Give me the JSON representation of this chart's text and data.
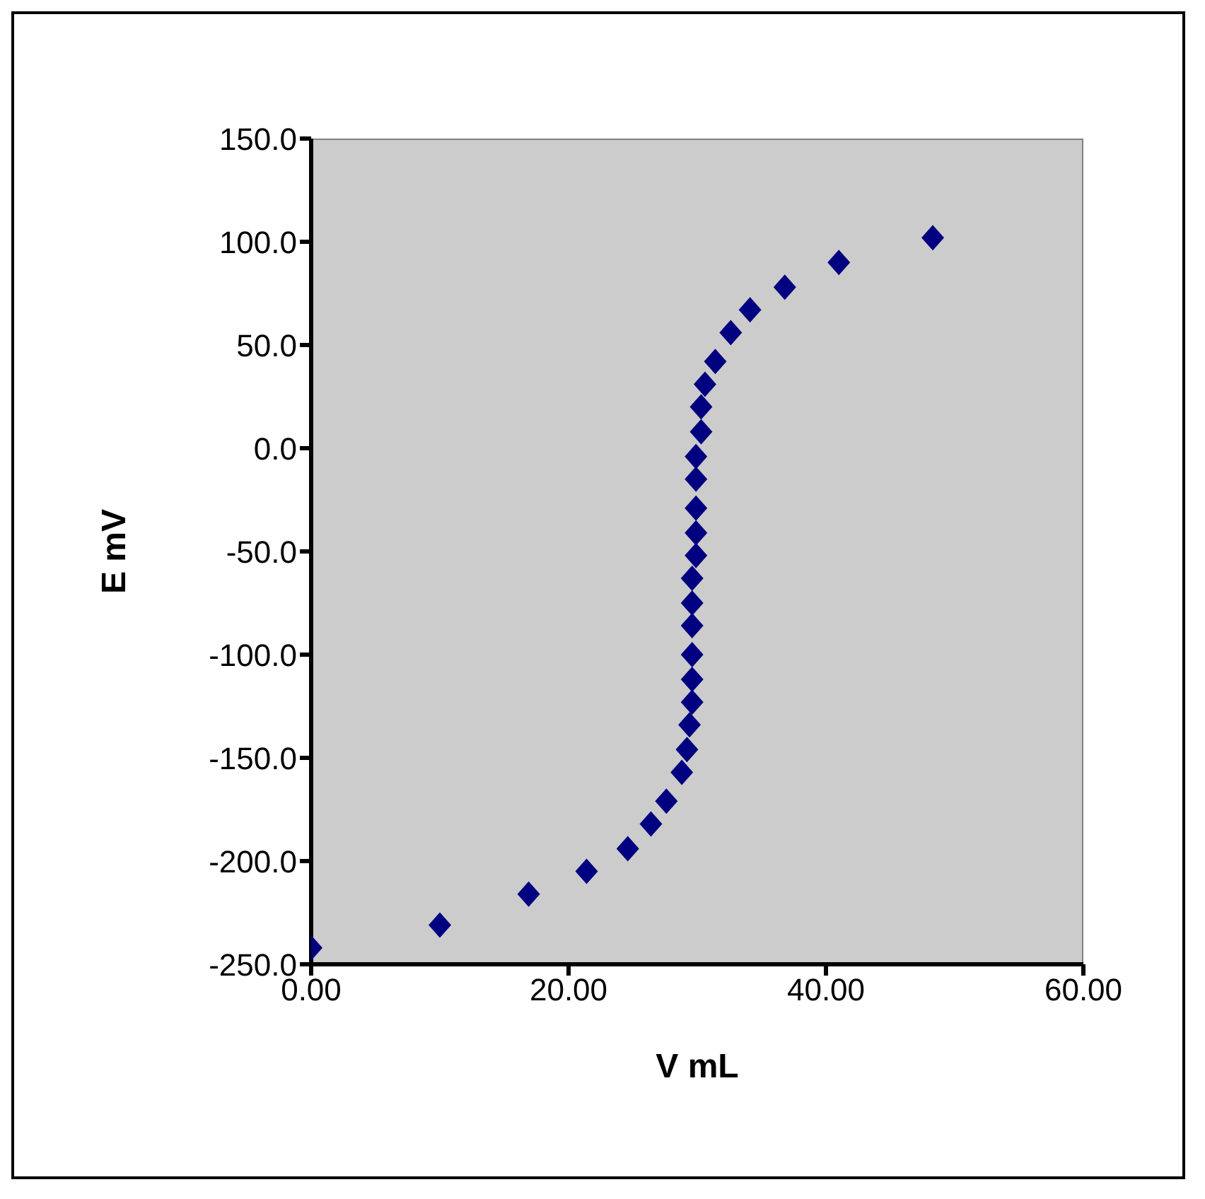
{
  "chart_data": {
    "type": "scatter",
    "xlabel": "V mL",
    "ylabel": "E mV",
    "x": [
      0,
      10,
      16.9,
      21.4,
      24.6,
      26.4,
      27.6,
      28.8,
      29.2,
      29.4,
      29.6,
      29.6,
      29.6,
      29.6,
      29.6,
      29.6,
      29.9,
      29.9,
      29.9,
      29.9,
      29.9,
      30.3,
      30.3,
      30.6,
      31.4,
      32.6,
      34.1,
      36.8,
      41.0,
      48.3
    ],
    "series": [
      {
        "color": "#000080",
        "values": [
          -242,
          -231,
          -216,
          -205,
          -194,
          -182,
          -171,
          -157,
          -146,
          -134,
          -123,
          -112,
          -100,
          -86,
          -75,
          -63,
          -52,
          -41,
          -29,
          -15,
          -4,
          8,
          20,
          31,
          42,
          56,
          67,
          78,
          90,
          102
        ]
      }
    ],
    "xlim": [
      0,
      60
    ],
    "xticks": [
      {
        "value": 0,
        "label": "0.00"
      },
      {
        "value": 20,
        "label": "20.00"
      },
      {
        "value": 40,
        "label": "40.00"
      },
      {
        "value": 60,
        "label": "60.00"
      }
    ],
    "ylim": [
      -250,
      150
    ],
    "yticks": [
      {
        "value": -250,
        "label": "-250.0"
      },
      {
        "value": -200,
        "label": "-200.0"
      },
      {
        "value": -150,
        "label": "-150.0"
      },
      {
        "value": -100,
        "label": "-100.0"
      },
      {
        "value": -50,
        "label": "-50.0"
      },
      {
        "value": 0,
        "label": "0.0"
      },
      {
        "value": 50,
        "label": "50.0"
      },
      {
        "value": 100,
        "label": "100.0"
      },
      {
        "value": 150,
        "label": "150.0"
      }
    ],
    "grid": false,
    "legend": false,
    "marker": "diamond"
  }
}
